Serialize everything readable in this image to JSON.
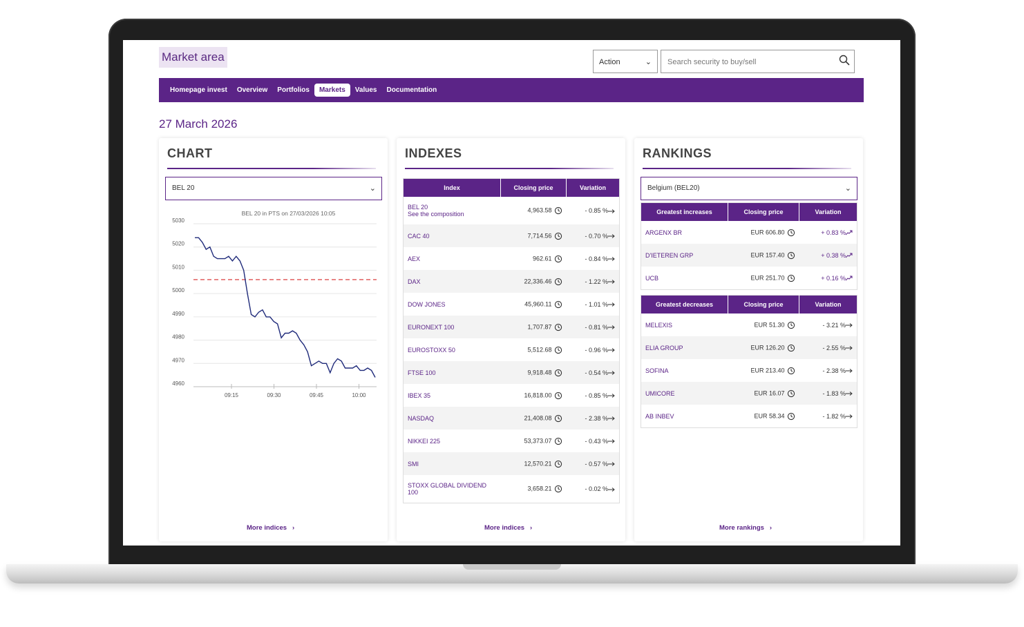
{
  "brand": "Market area",
  "header": {
    "action_label": "Action",
    "search_placeholder": "Search security to buy/sell"
  },
  "nav": [
    "Homepage invest",
    "Overview",
    "Portfolios",
    "Markets",
    "Values",
    "Documentation"
  ],
  "nav_active": "Markets",
  "date": "27 March 2026",
  "chart_panel": {
    "title": "CHART",
    "select": "BEL 20",
    "more": "More indices"
  },
  "chart_data": {
    "type": "line",
    "title": "BEL 20 in PTS on 27/03/2026 10:05",
    "y_ticks": [
      "5030",
      "5020",
      "5010",
      "5000",
      "4990",
      "4980",
      "4970",
      "4960"
    ],
    "x_ticks": [
      "09:15",
      "09:30",
      "09:45",
      "10:00"
    ],
    "ylim": [
      4960,
      5030
    ],
    "reference_line": 5006,
    "reference_color": "#d62828",
    "line_color": "#1f2a7a",
    "series": [
      {
        "values": [
          5024,
          5024,
          5022,
          5019,
          5020,
          5016,
          5015,
          5015,
          5015,
          5016,
          5014,
          5016,
          5014,
          5010,
          5000,
          4991,
          4990,
          4992,
          4993,
          4990,
          4990,
          4988,
          4987,
          4981,
          4983,
          4983,
          4984,
          4983,
          4980,
          4978,
          4975,
          4969,
          4970,
          4971,
          4970,
          4970,
          4966,
          4970,
          4972,
          4971,
          4968,
          4968,
          4968,
          4969,
          4967,
          4967,
          4968,
          4967,
          4964
        ]
      }
    ]
  },
  "indexes_panel": {
    "title": "INDEXES",
    "headers": [
      "Index",
      "Closing price",
      "Variation"
    ],
    "rows": [
      {
        "name": "BEL 20",
        "sub": "See the composition",
        "price": "4,963.58",
        "var": "- 0.85 %"
      },
      {
        "name": "CAC 40",
        "sub": "",
        "price": "7,714.56",
        "var": "- 0.70 %"
      },
      {
        "name": "AEX",
        "sub": "",
        "price": "962.61",
        "var": "- 0.84 %"
      },
      {
        "name": "DAX",
        "sub": "",
        "price": "22,336.46",
        "var": "- 1.22 %"
      },
      {
        "name": "DOW JONES",
        "sub": "",
        "price": "45,960.11",
        "var": "- 1.01 %"
      },
      {
        "name": "EURONEXT 100",
        "sub": "",
        "price": "1,707.87",
        "var": "- 0.81 %"
      },
      {
        "name": "EUROSTOXX 50",
        "sub": "",
        "price": "5,512.68",
        "var": "- 0.96 %"
      },
      {
        "name": "FTSE 100",
        "sub": "",
        "price": "9,918.48",
        "var": "- 0.54 %"
      },
      {
        "name": "IBEX 35",
        "sub": "",
        "price": "16,818.00",
        "var": "- 0.85 %"
      },
      {
        "name": "NASDAQ",
        "sub": "",
        "price": "21,408.08",
        "var": "- 2.38 %"
      },
      {
        "name": "NIKKEI 225",
        "sub": "",
        "price": "53,373.07",
        "var": "- 0.43 %"
      },
      {
        "name": "SMI",
        "sub": "",
        "price": "12,570.21",
        "var": "- 0.57 %"
      },
      {
        "name": "STOXX GLOBAL DIVIDEND 100",
        "sub": "",
        "price": "3,658.21",
        "var": "- 0.02 %"
      }
    ],
    "more": "More indices"
  },
  "rankings_panel": {
    "title": "RANKINGS",
    "select": "Belgium (BEL20)",
    "increases_headers": [
      "Greatest increases",
      "Closing price",
      "Variation"
    ],
    "increases": [
      {
        "name": "ARGENX BR",
        "price": "EUR 606.80",
        "var": "+ 0.83 %"
      },
      {
        "name": "D'IETEREN GRP",
        "price": "EUR 157.40",
        "var": "+ 0.38 %"
      },
      {
        "name": "UCB",
        "price": "EUR 251.70",
        "var": "+ 0.16 %"
      }
    ],
    "decreases_headers": [
      "Greatest decreases",
      "Closing price",
      "Variation"
    ],
    "decreases": [
      {
        "name": "MELEXIS",
        "price": "EUR 51.30",
        "var": "- 3.21 %"
      },
      {
        "name": "ELIA GROUP",
        "price": "EUR 126.20",
        "var": "- 2.55 %"
      },
      {
        "name": "SOFINA",
        "price": "EUR 213.40",
        "var": "- 2.38 %"
      },
      {
        "name": "UMICORE",
        "price": "EUR 16.07",
        "var": "- 1.83 %"
      },
      {
        "name": "AB INBEV",
        "price": "EUR 58.34",
        "var": "- 1.82 %"
      }
    ],
    "more": "More rankings"
  },
  "colors": {
    "brand": "#5b2487",
    "accent_bg": "#ece3f2"
  }
}
